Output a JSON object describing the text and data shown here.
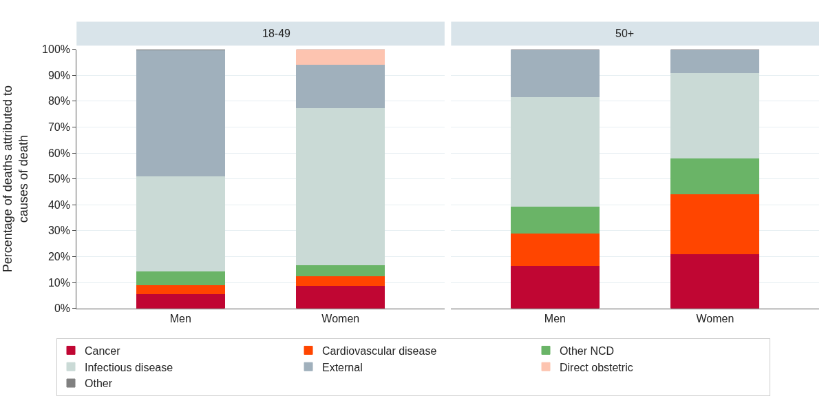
{
  "chart_data": [
    {
      "type": "bar",
      "title": "18-49",
      "stacked": true,
      "categories": [
        "Men",
        "Women"
      ],
      "ylabel": "Percentage of deaths attributed to causes of death",
      "ylim": [
        0,
        100
      ],
      "yticks": [
        {
          "value": 0,
          "label": "0%"
        },
        {
          "value": 10,
          "label": "10%"
        },
        {
          "value": 20,
          "label": "20%"
        },
        {
          "value": 30,
          "label": "30%"
        },
        {
          "value": 40,
          "label": "40%"
        },
        {
          "value": 50,
          "label": "50%"
        },
        {
          "value": 60,
          "label": "60%"
        },
        {
          "value": 70,
          "label": "70%"
        },
        {
          "value": 80,
          "label": "80%"
        },
        {
          "value": 90,
          "label": "90%"
        },
        {
          "value": 100,
          "label": "100%"
        }
      ],
      "grid": "y",
      "legend": "bottom",
      "series": [
        {
          "name": "Cancer",
          "color": "#c00633",
          "values": [
            5.5,
            8.8
          ]
        },
        {
          "name": "Cardiovascular disease",
          "color": "#ff4500",
          "values": [
            3.7,
            3.8
          ]
        },
        {
          "name": "Other NCD",
          "color": "#6ab467",
          "values": [
            5.3,
            4.2
          ]
        },
        {
          "name": "Infectious disease",
          "color": "#cadad6",
          "values": [
            36.6,
            60.6
          ]
        },
        {
          "name": "External",
          "color": "#a0b0bc",
          "values": [
            48.8,
            16.9
          ]
        },
        {
          "name": "Direct obstetric",
          "color": "#fdc4b0",
          "values": [
            0,
            5.7
          ]
        },
        {
          "name": "Other",
          "color": "#808080",
          "values": [
            0.1,
            0
          ]
        }
      ]
    },
    {
      "type": "bar",
      "title": "50+",
      "stacked": true,
      "categories": [
        "Men",
        "Women"
      ],
      "ylim": [
        0,
        100
      ],
      "yticks": [
        {
          "value": 0,
          "label": null
        },
        {
          "value": 10,
          "label": null
        },
        {
          "value": 20,
          "label": null
        },
        {
          "value": 30,
          "label": null
        },
        {
          "value": 40,
          "label": null
        },
        {
          "value": 50,
          "label": null
        },
        {
          "value": 60,
          "label": null
        },
        {
          "value": 70,
          "label": null
        },
        {
          "value": 80,
          "label": null
        },
        {
          "value": 90,
          "label": null
        },
        {
          "value": 100,
          "label": null
        }
      ],
      "grid": "y",
      "legend": "bottom",
      "tick_labels": "x",
      "series": [
        {
          "name": "Cancer",
          "color": "#c00633",
          "values": [
            16.5,
            21.1
          ]
        },
        {
          "name": "Cardiovascular disease",
          "color": "#ff4500",
          "values": [
            12.5,
            23.1
          ]
        },
        {
          "name": "Other NCD",
          "color": "#6ab467",
          "values": [
            10.5,
            13.9
          ]
        },
        {
          "name": "Infectious disease",
          "color": "#cadad6",
          "values": [
            42.1,
            33.0
          ]
        },
        {
          "name": "External",
          "color": "#a0b0bc",
          "values": [
            18.4,
            8.9
          ]
        },
        {
          "name": "Direct obstetric",
          "color": "#fdc4b0",
          "values": [
            0,
            0
          ]
        },
        {
          "name": "Other",
          "color": "#808080",
          "values": [
            0,
            0
          ]
        }
      ]
    }
  ]
}
